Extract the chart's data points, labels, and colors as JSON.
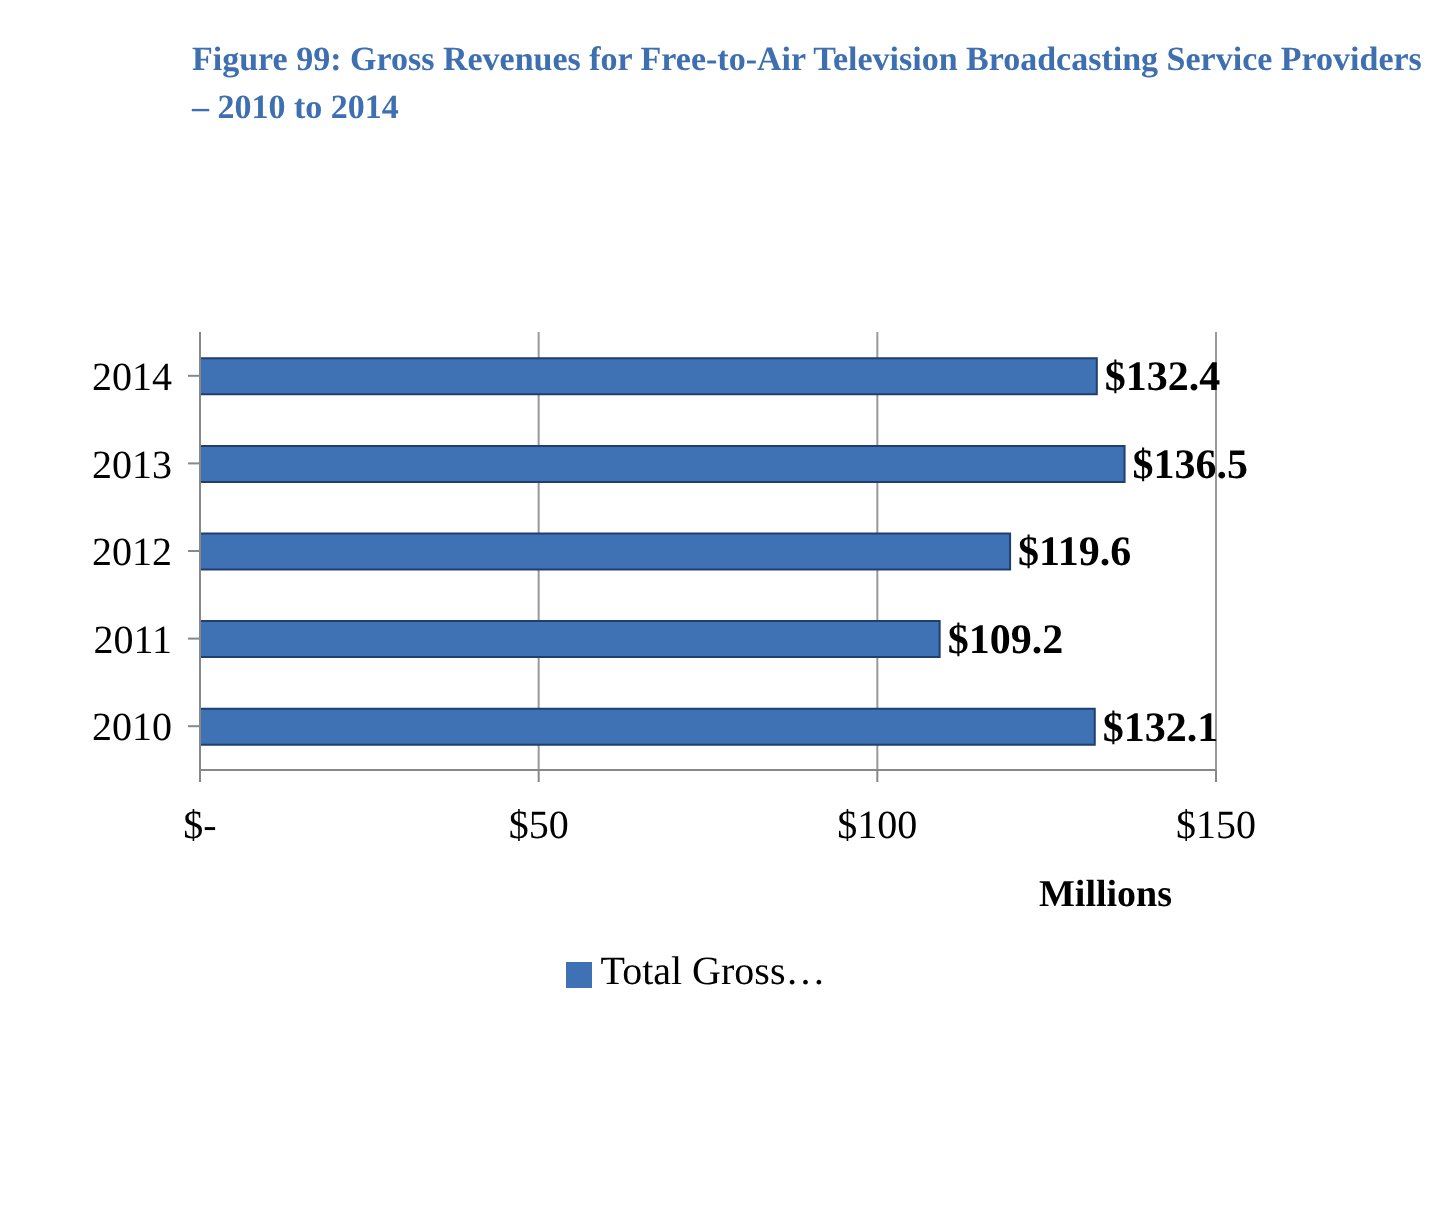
{
  "chart_data": {
    "type": "bar",
    "orientation": "horizontal",
    "title": "Figure 99: Gross Revenues for Free-to-Air Television Broadcasting Service Providers – 2010 to 2014",
    "xlabel": "Millions",
    "categories": [
      "2014",
      "2013",
      "2012",
      "2011",
      "2010"
    ],
    "series": [
      {
        "name": "Total Gross…",
        "color": "#3e72b5",
        "values": [
          132.4,
          136.5,
          119.6,
          109.2,
          132.1
        ],
        "value_labels": [
          "$132.4",
          "$136.5",
          "$119.6",
          "$109.2",
          "$132.1"
        ]
      }
    ],
    "xlim": [
      0,
      150
    ],
    "xticks": [
      {
        "value": 0,
        "label": "$-"
      },
      {
        "value": 50,
        "label": "$50"
      },
      {
        "value": 100,
        "label": "$100"
      },
      {
        "value": 150,
        "label": "$150"
      }
    ],
    "grid": "x",
    "legend": "bottom"
  }
}
